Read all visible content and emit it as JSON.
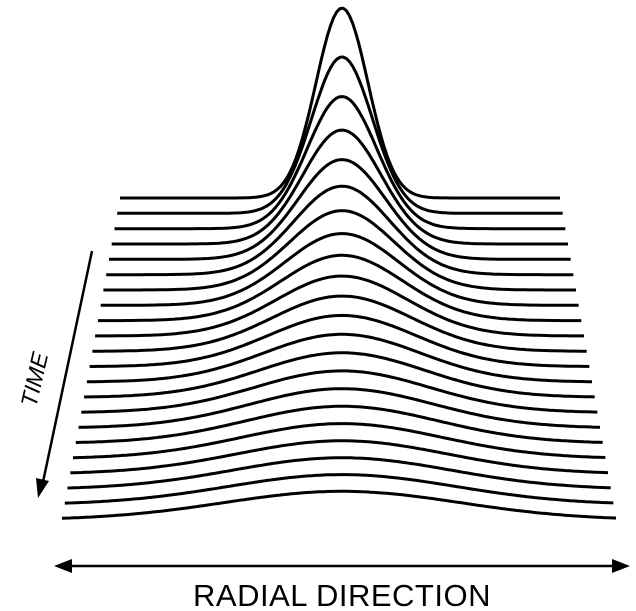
{
  "labels": {
    "time": "TIME",
    "radial": "RADIAL DIRECTION"
  },
  "diagram": {
    "profile_count": 22,
    "time_arrow": "diagonal, pointing down-left",
    "radial_arrow": "horizontal, double-headed",
    "stroke_color": "#000000"
  }
}
